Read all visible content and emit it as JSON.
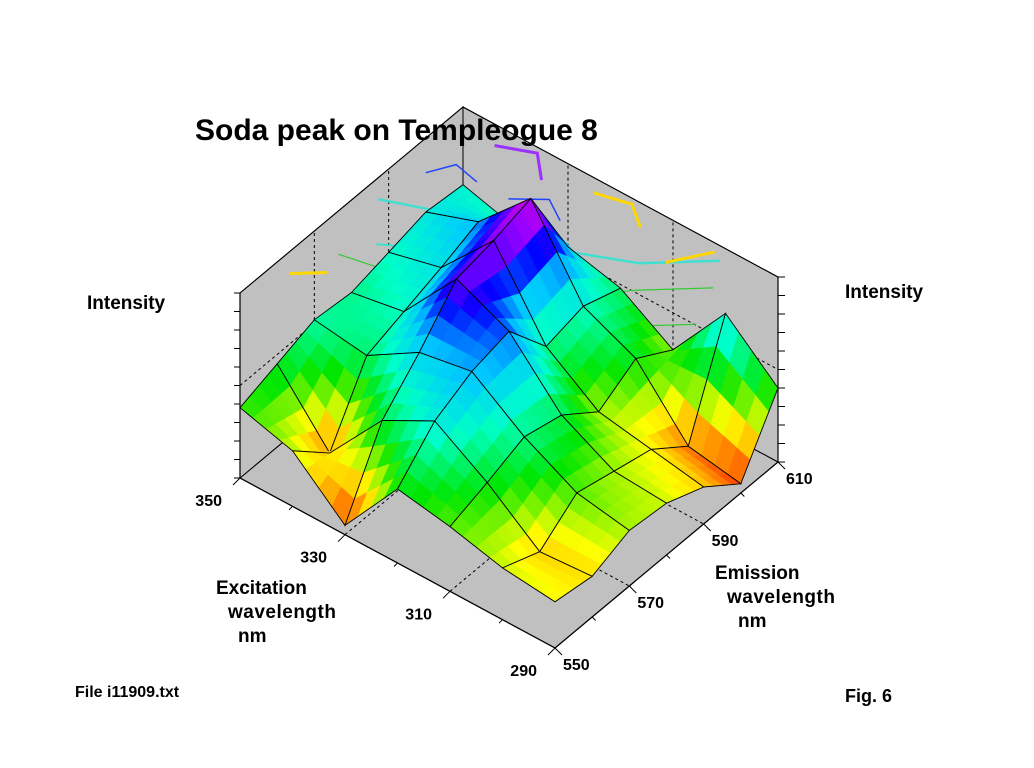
{
  "chart_data": {
    "type": "surface3d",
    "title": "Soda peak on Templeogue 8",
    "z_label": "Intensity",
    "x_axis": {
      "label_lines": [
        "Excitation",
        "wavelength",
        "nm"
      ],
      "ticks": [
        "350",
        "330",
        "310",
        "290"
      ]
    },
    "y_axis": {
      "label_lines": [
        "Emission",
        "wavelength",
        "nm"
      ],
      "ticks": [
        "550",
        "570",
        "590",
        "610"
      ]
    },
    "excitation": [
      350,
      340,
      330,
      320,
      310,
      300,
      290
    ],
    "emission": [
      550,
      560,
      570,
      580,
      590,
      600,
      610
    ],
    "intensity": [
      [
        0.38,
        0.45,
        0.52,
        0.5,
        0.55,
        0.6,
        0.58
      ],
      [
        0.3,
        0.12,
        0.48,
        0.55,
        0.62,
        0.7,
        0.5
      ],
      [
        0.05,
        0.45,
        0.65,
        0.88,
        0.92,
        0.98,
        0.55
      ],
      [
        0.4,
        0.6,
        0.7,
        0.75,
        0.5,
        0.55,
        0.48
      ],
      [
        0.35,
        0.42,
        0.5,
        0.45,
        0.3,
        0.42,
        0.3
      ],
      [
        0.28,
        0.2,
        0.35,
        0.3,
        0.25,
        0.1,
        0.65
      ],
      [
        0.25,
        0.22,
        0.3,
        0.28,
        0.2,
        0.05,
        0.4
      ]
    ]
  },
  "file_label": "File i11909.txt",
  "figure_label": "Fig. 6"
}
